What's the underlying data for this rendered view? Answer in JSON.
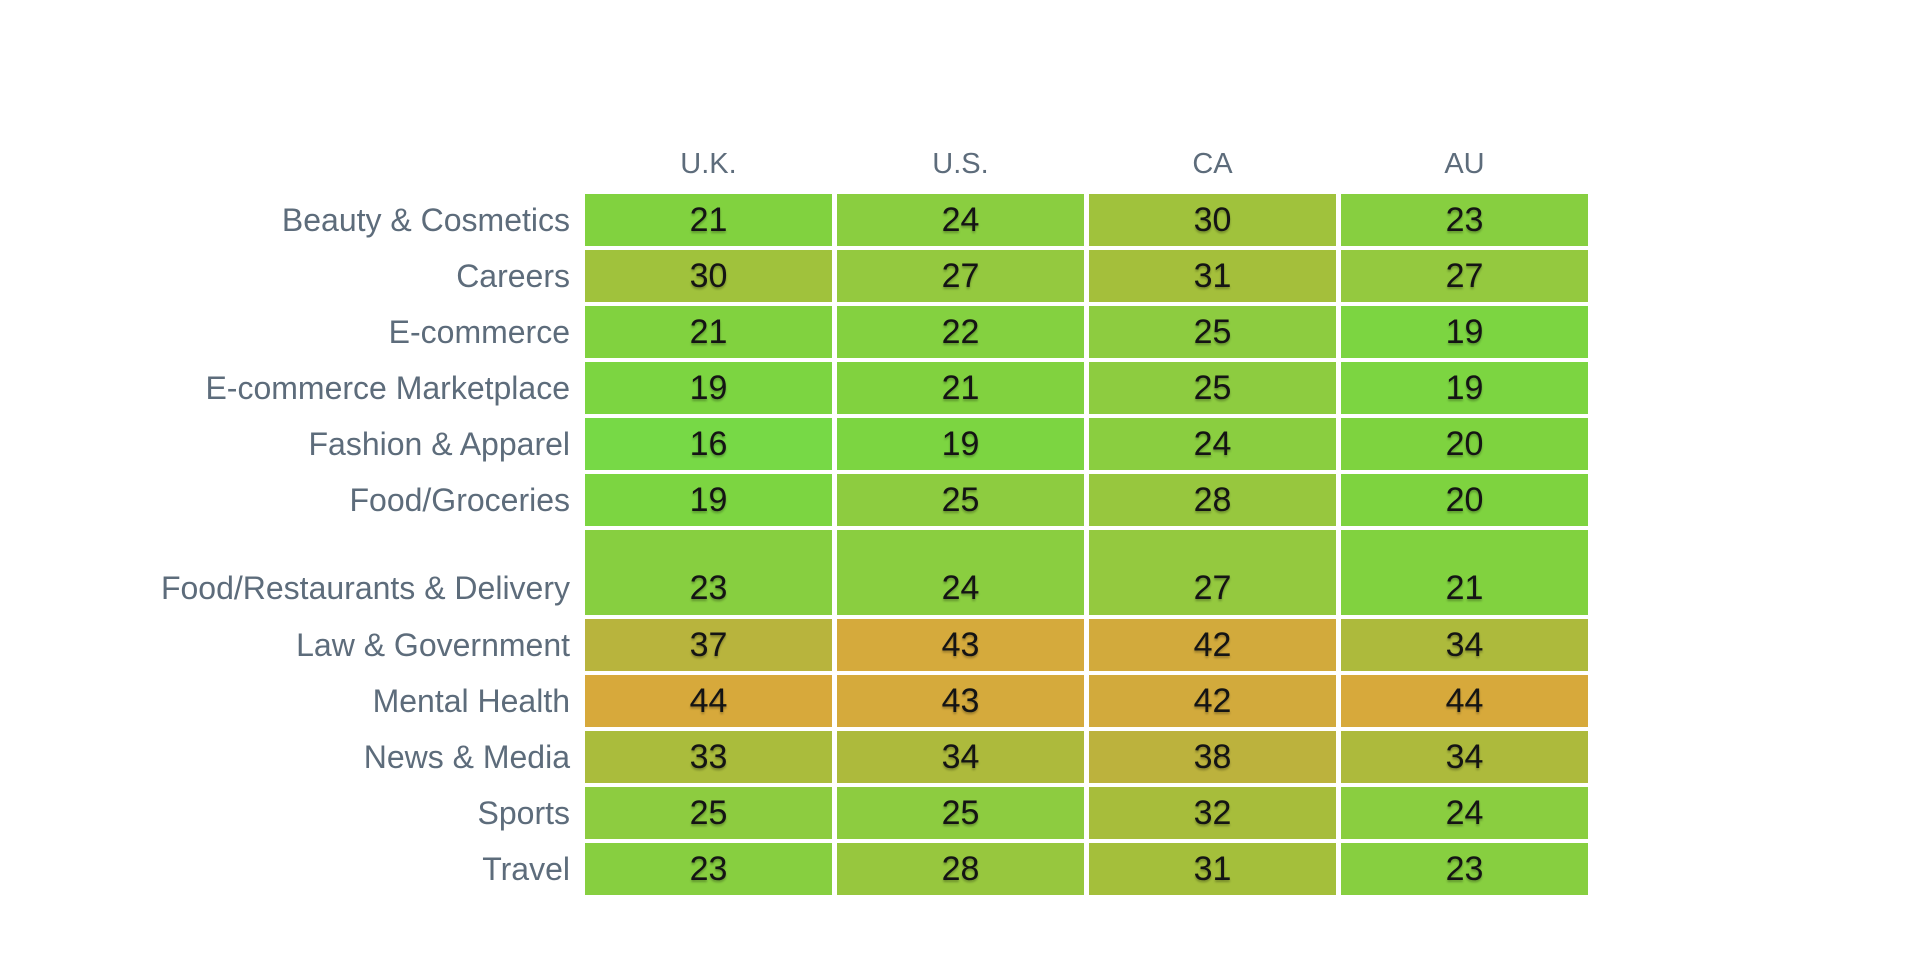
{
  "chart_data": {
    "type": "heatmap",
    "title": "",
    "columns": [
      "U.K.",
      "U.S.",
      "CA",
      "AU"
    ],
    "rows": [
      {
        "label": "Beauty & Cosmetics",
        "values": [
          21,
          24,
          30,
          23
        ]
      },
      {
        "label": "Careers",
        "values": [
          30,
          27,
          31,
          27
        ]
      },
      {
        "label": "E-commerce",
        "values": [
          21,
          22,
          25,
          19
        ]
      },
      {
        "label": "E-commerce Marketplace",
        "values": [
          19,
          21,
          25,
          19
        ]
      },
      {
        "label": "Fashion & Apparel",
        "values": [
          16,
          19,
          24,
          20
        ]
      },
      {
        "label": "Food/Groceries",
        "values": [
          19,
          25,
          28,
          20
        ]
      },
      {
        "label": "Food/Restaurants & Delivery",
        "values": [
          23,
          24,
          27,
          21
        ],
        "tall": true
      },
      {
        "label": "Law & Government",
        "values": [
          37,
          43,
          42,
          34
        ]
      },
      {
        "label": "Mental Health",
        "values": [
          44,
          43,
          42,
          44
        ]
      },
      {
        "label": "News & Media",
        "values": [
          33,
          34,
          38,
          34
        ]
      },
      {
        "label": "Sports",
        "values": [
          25,
          25,
          32,
          24
        ]
      },
      {
        "label": "Travel",
        "values": [
          23,
          28,
          31,
          23
        ]
      }
    ],
    "value_range": [
      16,
      44
    ],
    "color_scale": {
      "stops": [
        [
          16,
          "#77d946"
        ],
        [
          20,
          "#7ed33f"
        ],
        [
          24,
          "#8ace40"
        ],
        [
          28,
          "#97c73e"
        ],
        [
          31,
          "#a4bf3b"
        ],
        [
          34,
          "#adba3c"
        ],
        [
          38,
          "#bcb23d"
        ],
        [
          42,
          "#d2aa3c"
        ],
        [
          44,
          "#d7a93b"
        ]
      ]
    },
    "legend": "none",
    "grid_lines": "white gaps between cells",
    "colors": {
      "header_text": "#5d6c7b",
      "label_text": "#5d6c7b",
      "value_text": "#141414",
      "background": "#ffffff"
    }
  }
}
